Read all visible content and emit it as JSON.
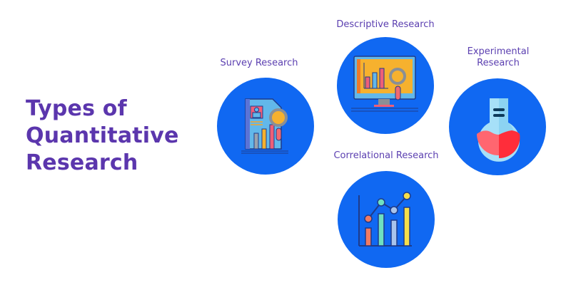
{
  "title": {
    "line1": "Types of",
    "line2": "Quantitative",
    "line3": "Research"
  },
  "types": [
    {
      "label": "Survey Research",
      "icon": "survey-document-icon"
    },
    {
      "label": "Descriptive Research",
      "icon": "monitor-chart-icon"
    },
    {
      "label_line1": "Experimental",
      "label_line2": "Research",
      "icon": "flask-icon"
    },
    {
      "label": "Correlational Research",
      "icon": "bar-line-chart-icon"
    }
  ],
  "colors": {
    "title": "#5b36ad",
    "label": "#5b3fb0",
    "circle": "#1068f2"
  }
}
